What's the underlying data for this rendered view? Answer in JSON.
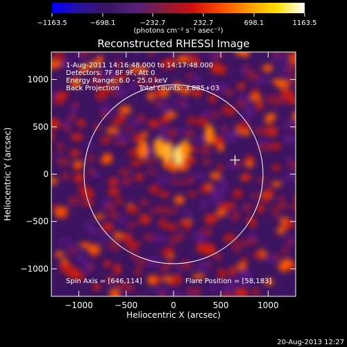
{
  "chart_data": {
    "type": "heatmap",
    "title": "Reconstructed RHESSI Image",
    "xlabel": "Heliocentric X (arcsec)",
    "ylabel": "Heliocentric Y (arcsec)",
    "xlim": [
      -1290,
      1290
    ],
    "ylim": [
      -1290,
      1290
    ],
    "x_ticks": [
      -1000,
      -500,
      0,
      500,
      1000
    ],
    "y_ticks": [
      -1000,
      -500,
      0,
      500,
      1000
    ],
    "x_tick_labels": [
      "−1000",
      "−500",
      "0",
      "500",
      "1000"
    ],
    "y_tick_labels": [
      "−1000",
      "−500",
      "0",
      "500",
      "1000"
    ],
    "colorbar": {
      "min": -1163.5,
      "max": 1163.5,
      "tick_labels": [
        "−1163.5",
        "−698.1",
        "−232.7",
        "232.7",
        "698.1",
        "1163.5"
      ],
      "unit_label": "(photons cm⁻² s⁻¹ asec⁻²)",
      "colors": [
        "#0000ff",
        "#2a12a0",
        "#3a1560",
        "#55207a",
        "#8a1a3a",
        "#cc1010",
        "#ff4a00",
        "#ff9a00",
        "#ffe000",
        "#ffffff"
      ]
    },
    "annotations": [
      "1-Aug-2011 14:16:48.000 to 14:17:48.000",
      "Detectors: 7F 8F 9F, Att 0",
      "Energy Range: 6.0 - 25.0 keV",
      "Back Projection",
      "Total counts: 3.885+03"
    ],
    "spin_axis": "Spin Axis = [646,114]",
    "flare_position": "Flare Position = [58,183]",
    "flare_marker": [
      650,
      150
    ],
    "solar_limb_radius": 945,
    "solar_limb_center": [
      0,
      0
    ],
    "timestamp": "20-Aug-2013 12:27"
  }
}
